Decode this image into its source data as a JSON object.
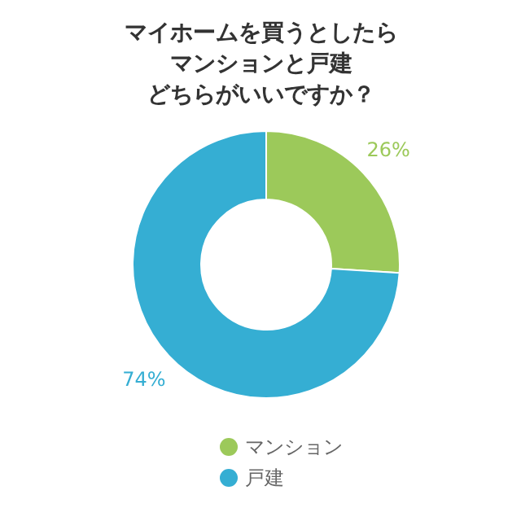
{
  "chart_data": {
    "type": "donut",
    "title": "マイホームを買うとしたらマンションと戸建どちらがいいですか？",
    "categories": [
      "マンション",
      "戸建"
    ],
    "values": [
      26,
      74
    ],
    "colors": [
      "#9cc95a",
      "#35aed3"
    ],
    "value_labels": [
      "26%",
      "74%"
    ],
    "legend": "bottom"
  }
}
